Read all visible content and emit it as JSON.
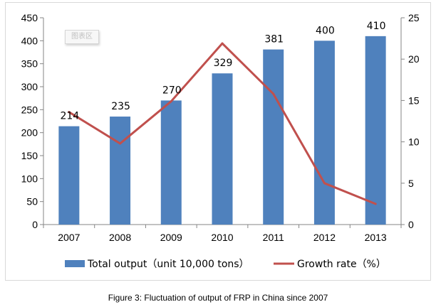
{
  "caption": "Figure 3:  Fluctuation of output of FRP in China since 2007",
  "watermark": "图表区",
  "chart_data": {
    "type": "bar",
    "categories": [
      "2007",
      "2008",
      "2009",
      "2010",
      "2011",
      "2012",
      "2013"
    ],
    "series": [
      {
        "name": "Total output（unit 10,000 tons）",
        "type": "bar",
        "axis": "left",
        "color": "#4f81bd",
        "values": [
          214,
          235,
          270,
          329,
          381,
          400,
          410
        ],
        "labels": [
          "214",
          "235",
          "270",
          "329",
          "381",
          "400",
          "410"
        ]
      },
      {
        "name": "Growth rate（%）",
        "type": "line",
        "axis": "right",
        "color": "#c0504d",
        "values": [
          13.6,
          9.8,
          14.9,
          21.9,
          15.8,
          5.0,
          2.5
        ]
      }
    ],
    "y_left": {
      "min": 0,
      "max": 450,
      "ticks": [
        "0",
        "50",
        "100",
        "150",
        "200",
        "250",
        "300",
        "350",
        "400",
        "450"
      ]
    },
    "y_right": {
      "min": 0,
      "max": 25,
      "ticks": [
        "0",
        "5",
        "10",
        "15",
        "20",
        "25"
      ]
    },
    "grid": false,
    "legend_position": "bottom"
  }
}
